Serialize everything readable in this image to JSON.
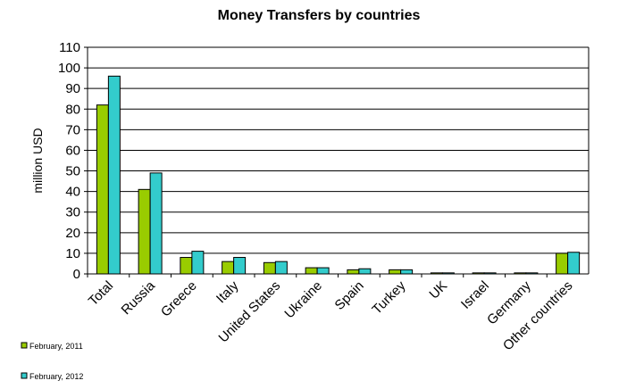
{
  "chart_data": {
    "type": "bar",
    "title": "Money Transfers by countries",
    "y_label": "million  USD",
    "categories": [
      "Total",
      "Russia",
      "Greece",
      "Italy",
      "United States",
      "Ukraine",
      "Spain",
      "Turkey",
      "UK",
      "Israel",
      "Germany",
      "Other countries"
    ],
    "series": [
      {
        "name": "February, 2011",
        "color": "#99cc00",
        "values": [
          82,
          41,
          8,
          6,
          5.5,
          3,
          2,
          2,
          0.5,
          0.5,
          0.5,
          10
        ]
      },
      {
        "name": "February, 2012",
        "color": "#33cccc",
        "values": [
          96,
          49,
          11,
          8,
          6,
          3,
          2.5,
          2,
          0.5,
          0.5,
          0.5,
          10.5
        ]
      }
    ],
    "ylim": [
      0,
      110
    ],
    "yticks": [
      0,
      10,
      20,
      30,
      40,
      50,
      60,
      70,
      80,
      90,
      100,
      110
    ],
    "grid": true
  }
}
